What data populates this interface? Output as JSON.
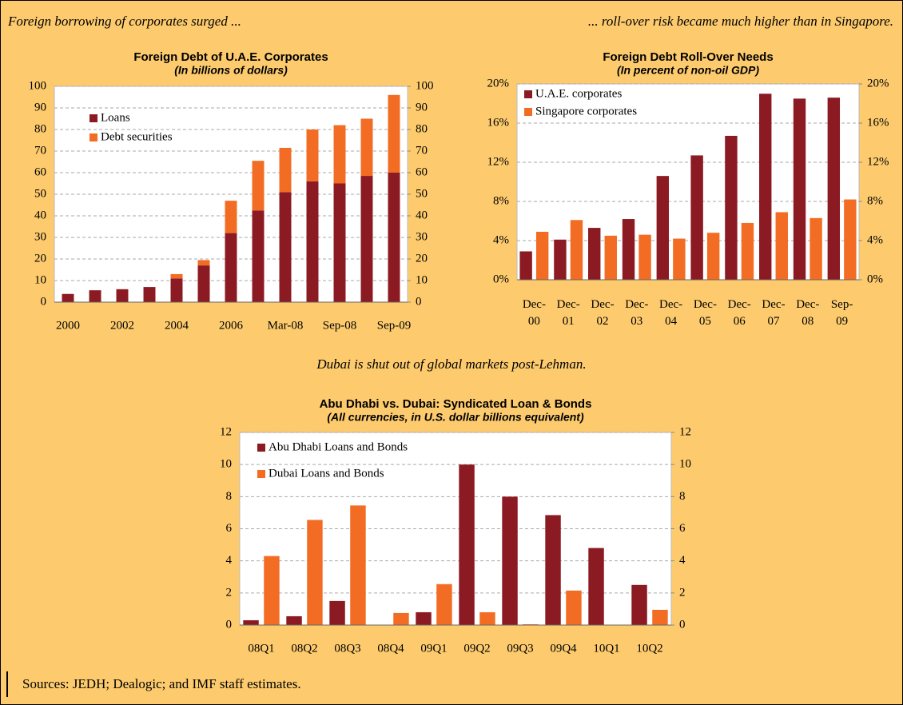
{
  "headings": [
    "Foreign borrowing of corporates surged ...",
    "... roll-over risk became much higher than in Singapore.",
    "Dubai is shut out of global markets post-Lehman."
  ],
  "source": "Sources: JEDH; Dealogic; and IMF staff estimates.",
  "chart_data": [
    {
      "type": "bar",
      "stacked": true,
      "title": "Foreign Debt of U.A.E. Corporates",
      "subtitle": "(In billions of dollars)",
      "categories": [
        "2000",
        null,
        "2002",
        null,
        "2004",
        null,
        "2006",
        null,
        "Mar-08",
        null,
        "Sep-08",
        null,
        "Sep-09"
      ],
      "series": [
        {
          "name": "Loans",
          "color": "#8b1a22",
          "values": [
            3.8,
            5.5,
            6,
            7,
            11,
            17,
            32,
            42.5,
            51,
            56,
            55,
            58.5,
            60
          ]
        },
        {
          "name": "Debt securities",
          "color": "#f36c24",
          "values": [
            0,
            0,
            0,
            0,
            2,
            2.5,
            15,
            23,
            20.5,
            24,
            27,
            26.5,
            36
          ]
        }
      ],
      "ylim": [
        0,
        100
      ],
      "yticks": [
        0,
        10,
        20,
        30,
        40,
        50,
        60,
        70,
        80,
        90,
        100
      ],
      "y2lim": [
        0,
        100
      ],
      "y2ticks": [
        0,
        10,
        20,
        30,
        40,
        50,
        60,
        70,
        80,
        90,
        100
      ],
      "grid": true
    },
    {
      "type": "bar",
      "stacked": false,
      "title": "Foreign Debt Roll-Over Needs",
      "subtitle": "(In percent of non-oil GDP)",
      "categories": [
        "Dec-00",
        "Dec-01",
        "Dec-02",
        "Dec-03",
        "Dec-04",
        "Dec-05",
        "Dec-06",
        "Dec-07",
        "Dec-08",
        "Sep-09"
      ],
      "series": [
        {
          "name": "U.A.E. corporates",
          "color": "#8b1a22",
          "values": [
            2.9,
            4.1,
            5.3,
            6.2,
            10.6,
            12.7,
            14.7,
            19,
            18.5,
            18.6
          ]
        },
        {
          "name": "Singapore corporates",
          "color": "#f36c24",
          "values": [
            4.9,
            6.1,
            4.5,
            4.6,
            4.2,
            4.8,
            5.8,
            6.9,
            6.3,
            8.2
          ]
        }
      ],
      "ylim": [
        0,
        20
      ],
      "yticks": [
        {
          "value": 0,
          "label": "0%"
        },
        {
          "value": 4,
          "label": "4%"
        },
        {
          "value": 8,
          "label": "8%"
        },
        {
          "value": 12,
          "label": "12%"
        },
        {
          "value": 16,
          "label": "16%"
        },
        {
          "value": 20,
          "label": "20%"
        }
      ],
      "y2lim": [
        0,
        20
      ],
      "y2ticks": [
        {
          "value": 0,
          "label": "0%"
        },
        {
          "value": 4,
          "label": "4%"
        },
        {
          "value": 8,
          "label": "8%"
        },
        {
          "value": 12,
          "label": "12%"
        },
        {
          "value": 16,
          "label": "16%"
        },
        {
          "value": 20,
          "label": "20%"
        }
      ],
      "grid": true
    },
    {
      "type": "bar",
      "stacked": false,
      "title": "Abu Dhabi vs. Dubai: Syndicated Loan & Bonds",
      "subtitle": "(All currencies, in U.S. dollar billions equivalent)",
      "categories": [
        "08Q1",
        "08Q2",
        "08Q3",
        "08Q4",
        "09Q1",
        "09Q2",
        "09Q3",
        "09Q4",
        "10Q1",
        "10Q2"
      ],
      "series": [
        {
          "name": "Abu Dhabi Loans and Bonds",
          "color": "#8b1a22",
          "values": [
            0.3,
            0.55,
            1.5,
            0,
            0.8,
            10,
            8,
            6.85,
            4.8,
            2.5
          ]
        },
        {
          "name": "Dubai Loans and Bonds",
          "color": "#f36c24",
          "values": [
            4.3,
            6.55,
            7.45,
            0.75,
            2.55,
            0.8,
            0.05,
            2.15,
            0,
            0.95
          ]
        }
      ],
      "ylim": [
        0,
        12
      ],
      "yticks": [
        0,
        2,
        4,
        6,
        8,
        10,
        12
      ],
      "y2lim": [
        0,
        12
      ],
      "y2ticks": [
        0,
        2,
        4,
        6,
        8,
        10,
        12
      ],
      "grid": true
    }
  ]
}
